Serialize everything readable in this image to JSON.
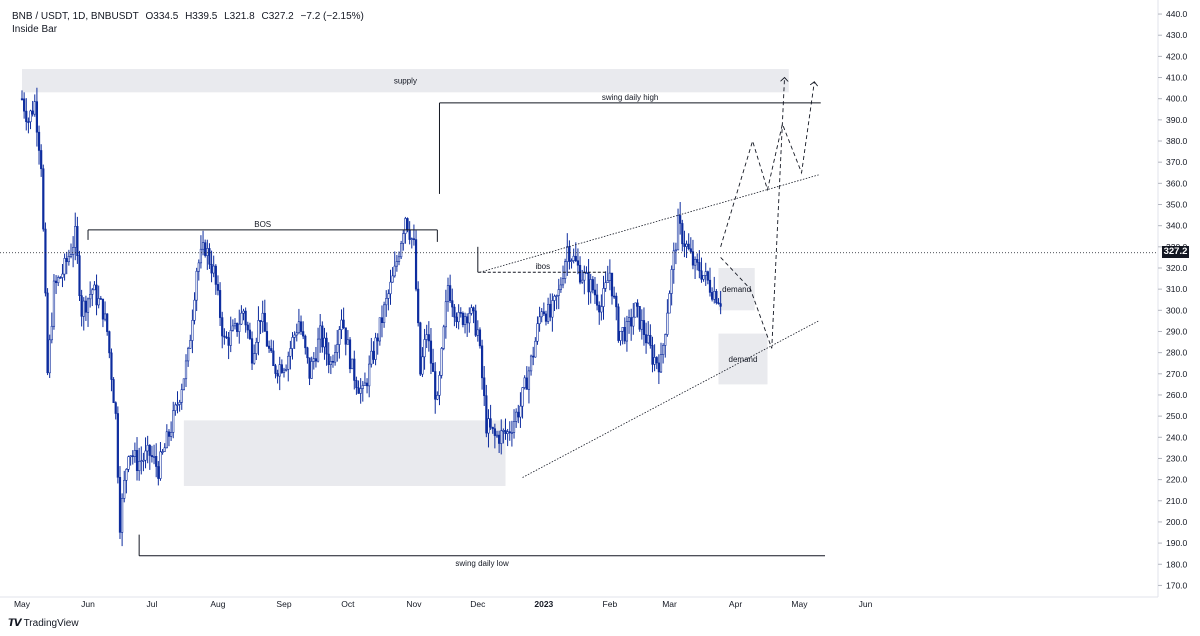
{
  "header": {
    "symbol": "BNB / USDT, 1D, BNBUSDT",
    "open": "O334.5",
    "high": "H339.5",
    "low": "L321.8",
    "close": "C327.2",
    "change": "−7.2 (−2.15%)",
    "indicator": "Inside Bar"
  },
  "brand": {
    "logo": "𝙏𝙑",
    "name": "TradingView"
  },
  "last_price_label": "327.2",
  "colors": {
    "candle": "#0d2c9e",
    "zone": "#e9eaee",
    "text": "#131722",
    "grid_text": "#131722"
  },
  "chart_data": {
    "type": "candlestick",
    "title": "",
    "xlabel": "",
    "ylabel": "",
    "ylim": [
      165,
      440
    ],
    "y_ticks": [
      170,
      180,
      190,
      200,
      210,
      220,
      230,
      240,
      250,
      260,
      270,
      280,
      290,
      300,
      310,
      320,
      330,
      340,
      350,
      360,
      370,
      380,
      390,
      400,
      410,
      420,
      430,
      440
    ],
    "x_ticks": [
      "May",
      "Jun",
      "Jul",
      "Aug",
      "Sep",
      "Oct",
      "Nov",
      "Dec",
      "2023",
      "Feb",
      "Mar",
      "Apr",
      "May",
      "Jun"
    ],
    "x_tick_days": [
      0,
      31,
      61,
      92,
      123,
      153,
      184,
      214,
      245,
      276,
      304,
      335,
      365,
      396
    ],
    "x_range_days": [
      0,
      405
    ],
    "last_price": 327.2,
    "close_path_days": [
      0,
      3,
      6,
      9,
      12,
      15,
      20,
      25,
      28,
      33,
      38,
      40,
      44,
      46,
      50,
      54,
      60,
      64,
      68,
      72,
      78,
      82,
      86,
      90,
      95,
      100,
      104,
      108,
      112,
      118,
      124,
      130,
      135,
      140,
      145,
      150,
      155,
      160,
      165,
      170,
      175,
      180,
      184,
      187,
      190,
      195,
      200,
      205,
      210,
      214,
      218,
      222,
      228,
      234,
      240,
      244,
      248,
      252,
      256,
      262,
      268,
      272,
      276,
      280,
      284,
      288,
      292,
      296,
      300,
      304,
      308,
      312,
      316,
      318,
      321,
      324,
      328
    ],
    "close_path_prices": [
      400,
      390,
      398,
      370,
      270,
      310,
      320,
      335,
      300,
      310,
      300,
      290,
      250,
      200,
      235,
      228,
      232,
      225,
      238,
      252,
      278,
      320,
      330,
      318,
      285,
      290,
      300,
      280,
      298,
      272,
      276,
      295,
      270,
      288,
      275,
      298,
      272,
      260,
      280,
      300,
      318,
      345,
      330,
      270,
      290,
      255,
      312,
      295,
      300,
      290,
      246,
      240,
      242,
      255,
      280,
      302,
      297,
      308,
      330,
      318,
      310,
      302,
      318,
      290,
      290,
      300,
      290,
      278,
      275,
      310,
      340,
      330,
      320,
      320,
      315,
      310,
      305
    ],
    "zones": [
      {
        "label": "supply",
        "d0": 0,
        "d1": 360,
        "p0": 403,
        "p1": 414
      },
      {
        "label": "",
        "d0": 76,
        "d1": 227,
        "p0": 217,
        "p1": 248
      },
      {
        "label": "demand",
        "d0": 327,
        "d1": 344,
        "p0": 300,
        "p1": 320
      },
      {
        "label": "demand",
        "d0": 327,
        "d1": 350,
        "p0": 265,
        "p1": 289
      }
    ],
    "levels": [
      {
        "label": "swing daily high",
        "d0": 196,
        "d1": 375,
        "price": 398
      },
      {
        "label": "BOS",
        "d0": 31,
        "d1": 195,
        "price": 338
      },
      {
        "label": "ibos",
        "d0": 214,
        "d1": 275,
        "price": 318
      },
      {
        "label": "swing daily low",
        "d0": 55,
        "d1": 377,
        "price": 184
      }
    ],
    "trendlines": [
      {
        "d0": 215,
        "p0": 318,
        "d1": 374,
        "p1": 364
      },
      {
        "d0": 235,
        "p0": 221,
        "d1": 374,
        "p1": 295
      }
    ],
    "projections": [
      [
        [
          328,
          325
        ],
        [
          342,
          310
        ],
        [
          352,
          282
        ],
        [
          358,
          410
        ]
      ],
      [
        [
          328,
          330
        ],
        [
          343,
          380
        ],
        [
          350,
          357
        ],
        [
          357,
          388
        ],
        [
          366,
          365
        ],
        [
          372,
          408
        ]
      ]
    ]
  }
}
